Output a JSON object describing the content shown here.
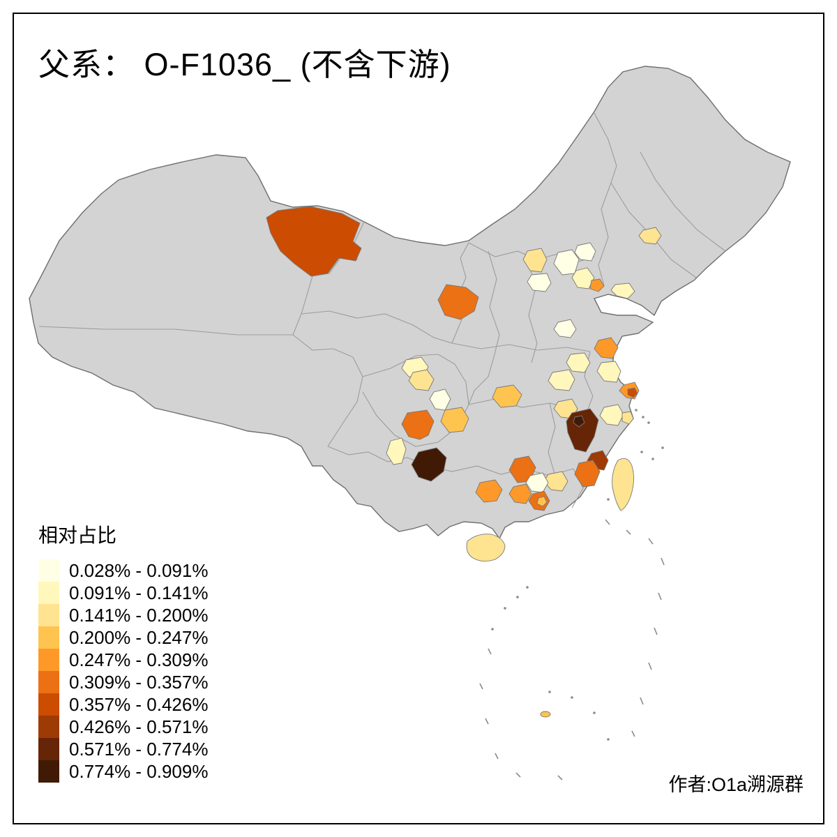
{
  "title": "父系： O-F1036_ (不含下游)",
  "attribution": "作者:O1a溯源群",
  "legend": {
    "title": "相对占比",
    "classes": [
      {
        "label": "0.028% - 0.091%",
        "color": "#FFFFE5"
      },
      {
        "label": "0.091% - 0.141%",
        "color": "#FFF7BC"
      },
      {
        "label": "0.141% - 0.200%",
        "color": "#FEE391"
      },
      {
        "label": "0.200% - 0.247%",
        "color": "#FEC44F"
      },
      {
        "label": "0.247% - 0.309%",
        "color": "#FE9929"
      },
      {
        "label": "0.309% - 0.357%",
        "color": "#EC7014"
      },
      {
        "label": "0.357% - 0.426%",
        "color": "#CC4C02"
      },
      {
        "label": "0.426% - 0.571%",
        "color": "#9E3A04"
      },
      {
        "label": "0.571% - 0.774%",
        "color": "#662506"
      },
      {
        "label": "0.774% - 0.909%",
        "color": "#401A05"
      }
    ]
  },
  "map": {
    "base_fill": "#D3D3D3",
    "regions": [
      {
        "name": "xinjiang-east",
        "class": 6
      },
      {
        "name": "ningxia",
        "class": 5
      },
      {
        "name": "zhangjiakou",
        "class": 2
      },
      {
        "name": "beijing",
        "class": 0
      },
      {
        "name": "chengde",
        "class": 0
      },
      {
        "name": "tianjin",
        "class": 1
      },
      {
        "name": "baoding",
        "class": 0
      },
      {
        "name": "liaoning-w",
        "class": 2
      },
      {
        "name": "hebei-coast",
        "class": 4
      },
      {
        "name": "shandong",
        "class": 1
      },
      {
        "name": "shanxi-c",
        "class": 0
      },
      {
        "name": "henan",
        "class": 1
      },
      {
        "name": "jiangsu-n",
        "class": 4
      },
      {
        "name": "jiangsu-s",
        "class": 1
      },
      {
        "name": "shanghai",
        "class": 4
      },
      {
        "name": "suzhou-dot",
        "class": 6
      },
      {
        "name": "anhui",
        "class": 1
      },
      {
        "name": "hubei",
        "class": 3
      },
      {
        "name": "sichuan-n",
        "class": 1
      },
      {
        "name": "chengdu",
        "class": 2
      },
      {
        "name": "sichuan-e",
        "class": 0
      },
      {
        "name": "chongqing",
        "class": 5
      },
      {
        "name": "chongqing-e",
        "class": 3
      },
      {
        "name": "guizhou",
        "class": 9
      },
      {
        "name": "yunnan-ne",
        "class": 1
      },
      {
        "name": "hunan",
        "class": 5
      },
      {
        "name": "guangxi-e",
        "class": 4
      },
      {
        "name": "wuzhou",
        "class": 4
      },
      {
        "name": "jiangxi-nw",
        "class": 2
      },
      {
        "name": "zhejiang-w",
        "class": 8
      },
      {
        "name": "quzhou-dark",
        "class": 9
      },
      {
        "name": "zhejiang-e",
        "class": 1
      },
      {
        "name": "ningbo",
        "class": 2
      },
      {
        "name": "fujian-nw",
        "class": 7
      },
      {
        "name": "fujian-s",
        "class": 5
      },
      {
        "name": "guangdong-e",
        "class": 2
      },
      {
        "name": "guangdong-n",
        "class": 0
      },
      {
        "name": "pearl-delta",
        "class": 5
      },
      {
        "name": "delta-dot",
        "class": 3
      },
      {
        "name": "hainan",
        "class": 2
      },
      {
        "name": "taiwan",
        "class": 2
      },
      {
        "name": "pratas",
        "class": 3
      }
    ]
  }
}
